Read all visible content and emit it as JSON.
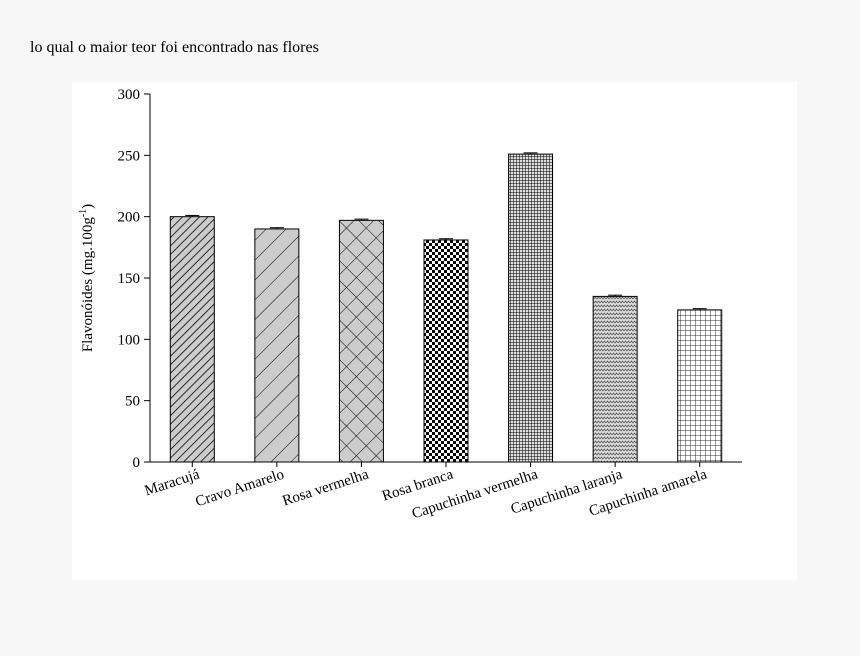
{
  "header": {
    "text": "lo qual o maior teor foi encontrado nas flores"
  },
  "chart_data": {
    "type": "bar",
    "ylabel": {
      "main": "Flavonóides (mg.100g",
      "sup": "-1",
      "close": ")"
    },
    "categories": [
      "Maracujá",
      "Cravo Amarelo",
      "Rosa vermelha",
      "Rosa branca",
      "Capuchinha vermelha",
      "Capuchinha laranja",
      "Capuchinha amarela"
    ],
    "values": [
      200,
      190,
      197,
      181,
      251,
      135,
      124
    ],
    "errors": [
      1,
      1,
      1,
      1,
      1,
      1,
      1
    ],
    "ylim": [
      0,
      300
    ],
    "yticks": [
      0,
      50,
      100,
      150,
      200,
      250,
      300
    ]
  }
}
